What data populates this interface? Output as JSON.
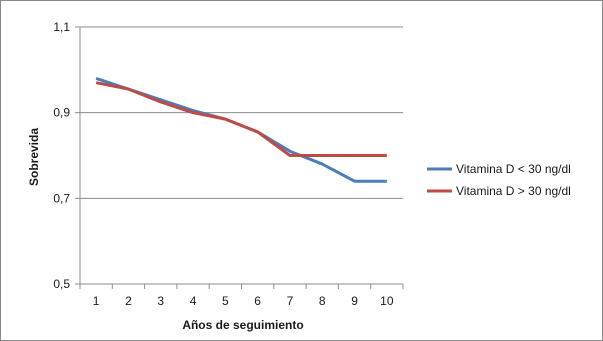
{
  "chart_data": {
    "type": "line",
    "title": "",
    "xlabel": "Años de seguimiento",
    "ylabel": "Sobrevida",
    "x": [
      1,
      2,
      3,
      4,
      5,
      6,
      7,
      8,
      9,
      10
    ],
    "ylim": [
      0.5,
      1.1
    ],
    "yticks": [
      "0,5",
      "0,7",
      "0,9",
      "1,1"
    ],
    "ytick_values": [
      0.5,
      0.7,
      0.9,
      1.1
    ],
    "xticks": [
      "1",
      "2",
      "3",
      "4",
      "5",
      "6",
      "7",
      "8",
      "9",
      "10"
    ],
    "grid": true,
    "legend_position": "right",
    "series": [
      {
        "name": "Vitamina D < 30 ng/dl",
        "color": "#4a7ebb",
        "values": [
          0.98,
          0.955,
          0.93,
          0.905,
          0.885,
          0.855,
          0.81,
          0.78,
          0.74,
          0.74
        ]
      },
      {
        "name": "Vitamina D > 30 ng/dl",
        "color": "#be4b48",
        "values": [
          0.97,
          0.955,
          0.925,
          0.9,
          0.885,
          0.855,
          0.8,
          0.8,
          0.8,
          0.8
        ]
      }
    ]
  }
}
